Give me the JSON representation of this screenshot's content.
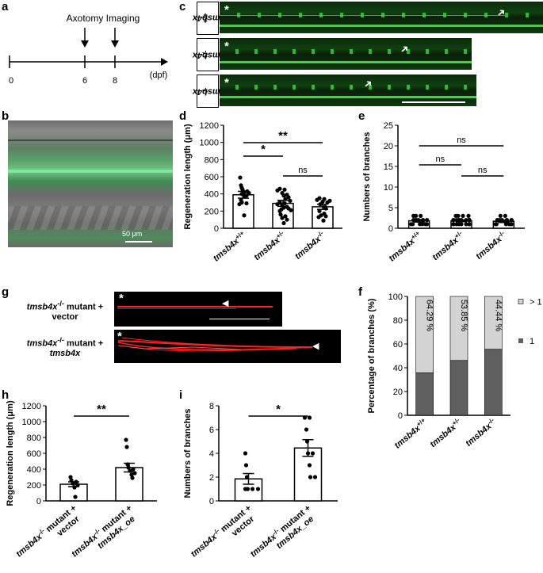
{
  "panels": {
    "a": "a",
    "b": "b",
    "c": "c",
    "d": "d",
    "e": "e",
    "f": "f",
    "g": "g",
    "h": "h",
    "i": "i"
  },
  "timeline": {
    "events": [
      {
        "label": "Axotomy",
        "day": 6
      },
      {
        "label": "Imaging",
        "day": 8
      }
    ],
    "ticks": [
      "0",
      "6",
      "8"
    ],
    "unit": "(dpf)"
  },
  "panel_b": {
    "scalebar": "50 μm"
  },
  "panel_c": {
    "rows": [
      {
        "base": "tmsb4x",
        "sup": "+/+"
      },
      {
        "base": "tmsb4x",
        "sup": "+/-"
      },
      {
        "base": "tmsb4x",
        "sup": "-/-"
      }
    ],
    "asterisk": "*"
  },
  "panel_g": {
    "rows": [
      {
        "line1_base": "tmsb4x",
        "line1_sup": "-/-",
        "line1_rest": " mutant +",
        "line2": "vector"
      },
      {
        "line1_base": "tmsb4x",
        "line1_sup": "-/-",
        "line1_rest": " mutant +",
        "line2": "tmsb4x"
      }
    ],
    "asterisk": "*"
  },
  "colors": {
    "bar_fill": "#ffffff",
    "bar_stroke": "#000000",
    "dot": "#000000",
    "micro_green": "#3ad93a",
    "micro_red": "#ff2020",
    "stack_light": "#d3d3d3",
    "stack_dark": "#5f5f5f"
  },
  "chart_data": [
    {
      "panel": "d",
      "type": "bar",
      "ylabel": "Regeneration length (μm)",
      "ylim": [
        0,
        1200
      ],
      "yticks": [
        "0",
        "200",
        "400",
        "600",
        "800",
        "1000",
        "1200"
      ],
      "categories": [
        {
          "base": "tmsb4x",
          "sup": "+/+"
        },
        {
          "base": "tmsb4x",
          "sup": "+/-"
        },
        {
          "base": "tmsb4x",
          "sup": "-/-"
        }
      ],
      "values": [
        390,
        290,
        250
      ],
      "errors": [
        40,
        35,
        30
      ],
      "points": [
        [
          590,
          500,
          470,
          450,
          430,
          420,
          410,
          400,
          380,
          370,
          330,
          300,
          290,
          280,
          150
        ],
        [
          460,
          450,
          440,
          410,
          390,
          380,
          360,
          340,
          320,
          300,
          290,
          280,
          270,
          250,
          240,
          230,
          220,
          210,
          200,
          160,
          140,
          120,
          100,
          60
        ],
        [
          350,
          340,
          330,
          320,
          310,
          300,
          280,
          250,
          230,
          200,
          170,
          150,
          140,
          130,
          90
        ]
      ],
      "significance": [
        {
          "from": 0,
          "to": 1,
          "label": "*"
        },
        {
          "from": 1,
          "to": 2,
          "label": "ns"
        },
        {
          "from": 0,
          "to": 2,
          "label": "**"
        }
      ]
    },
    {
      "panel": "e",
      "type": "bar",
      "ylabel": "Numbers of branches",
      "ylim": [
        0,
        25
      ],
      "yticks": [
        "0",
        "5",
        "10",
        "15",
        "20",
        "25"
      ],
      "categories": [
        {
          "base": "tmsb4x",
          "sup": "+/+"
        },
        {
          "base": "tmsb4x",
          "sup": "+/-"
        },
        {
          "base": "tmsb4x",
          "sup": "-/-"
        }
      ],
      "values": [
        1.8,
        1.8,
        1.7
      ],
      "errors": [
        0.3,
        0.2,
        0.3
      ],
      "points": [
        [
          3,
          3,
          3,
          2,
          2,
          2,
          2,
          2,
          1,
          1,
          1,
          1,
          1,
          1
        ],
        [
          3,
          3,
          3,
          3,
          2,
          2,
          2,
          2,
          2,
          2,
          2,
          2,
          2,
          1,
          1,
          1,
          1,
          1,
          1,
          1,
          1,
          1,
          1
        ],
        [
          3,
          3,
          2,
          2,
          2,
          2,
          2,
          1,
          1,
          1,
          1,
          1,
          1,
          1
        ]
      ],
      "significance": [
        {
          "from": 0,
          "to": 1,
          "label": "ns"
        },
        {
          "from": 1,
          "to": 2,
          "label": "ns"
        },
        {
          "from": 0,
          "to": 2,
          "label": "ns"
        }
      ]
    },
    {
      "panel": "f",
      "type": "bar",
      "stacked": true,
      "ylabel": "Percentage of branches (%)",
      "ylim": [
        0,
        100
      ],
      "yticks": [
        "0",
        "20",
        "40",
        "60",
        "80",
        "100"
      ],
      "categories": [
        {
          "base": "tmsb4x",
          "sup": "+/+"
        },
        {
          "base": "tmsb4x",
          "sup": "+/-"
        },
        {
          "base": "tmsb4x",
          "sup": "-/-"
        }
      ],
      "series": [
        {
          "name": "1",
          "values": [
            35.71,
            46.15,
            55.56
          ]
        },
        {
          "name": "> 1",
          "values": [
            64.29,
            53.85,
            44.44
          ]
        }
      ],
      "bar_labels": [
        "64.29 %",
        "53.85 %",
        "44.44 %"
      ]
    },
    {
      "panel": "h",
      "type": "bar",
      "ylabel": "Regeneration length (μm)",
      "ylim": [
        0,
        1200
      ],
      "yticks": [
        "0",
        "200",
        "400",
        "600",
        "800",
        "1000",
        "1200"
      ],
      "categories": [
        {
          "base": "tmsb4x",
          "sup": "-/-",
          "rest": " mutant +",
          "line2": "vector"
        },
        {
          "base": "tmsb4x",
          "sup": "-/-",
          "rest": " mutant +",
          "line2": "tmsb4x_oe"
        }
      ],
      "values": [
        210,
        420
      ],
      "errors": [
        30,
        55
      ],
      "points": [
        [
          300,
          260,
          240,
          220,
          200,
          170,
          50
        ],
        [
          770,
          680,
          460,
          420,
          400,
          380,
          350,
          330,
          290
        ]
      ],
      "significance": [
        {
          "from": 0,
          "to": 1,
          "label": "**"
        }
      ]
    },
    {
      "panel": "i",
      "type": "bar",
      "ylabel": "Numbers of branches",
      "ylim": [
        0,
        8
      ],
      "yticks": [
        "0",
        "2",
        "4",
        "6",
        "8"
      ],
      "categories": [
        {
          "base": "tmsb4x",
          "sup": "-/-",
          "rest": " mutant +",
          "line2": "vector"
        },
        {
          "base": "tmsb4x",
          "sup": "-/-",
          "rest": " mutant +",
          "line2": "tmsb4x_oe"
        }
      ],
      "values": [
        1.85,
        4.45
      ],
      "errors": [
        0.45,
        0.7
      ],
      "points": [
        [
          4,
          3,
          2,
          1,
          1,
          1,
          1
        ],
        [
          7,
          7,
          6,
          5,
          4,
          4,
          3,
          2,
          2
        ]
      ],
      "significance": [
        {
          "from": 0,
          "to": 1,
          "label": "*"
        }
      ]
    }
  ]
}
